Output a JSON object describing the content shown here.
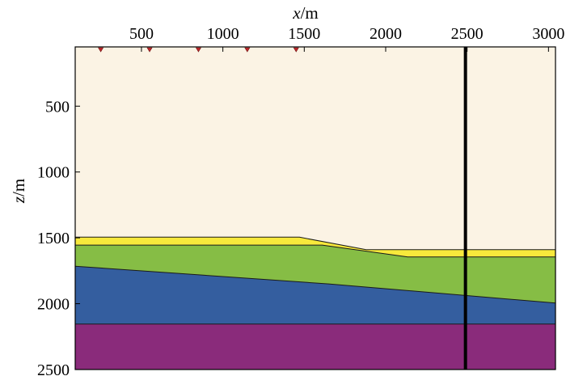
{
  "figure": {
    "x_axis": {
      "label_var": "x",
      "label_unit": "/m",
      "range": [
        93,
        3043
      ],
      "ticks": [
        500,
        1000,
        1500,
        2000,
        2500,
        3000
      ],
      "tick_labels": [
        "500",
        "1000",
        "1500",
        "2000",
        "2500",
        "3000"
      ],
      "position": "top"
    },
    "z_axis": {
      "label_var": "z",
      "label_unit": "/m",
      "range": [
        50,
        2500
      ],
      "ticks": [
        500,
        1000,
        1500,
        2000,
        2500
      ],
      "tick_labels": [
        "500",
        "1000",
        "1500",
        "2000",
        "2500"
      ],
      "direction": "downward"
    },
    "layers": [
      {
        "id": "background",
        "color": "#fbf3e4",
        "top": [
          [
            93,
            50
          ],
          [
            3043,
            50
          ]
        ]
      },
      {
        "id": "yellow-layer",
        "color": "#f8e93c",
        "top": [
          [
            93,
            1495
          ],
          [
            1470,
            1495
          ],
          [
            1880,
            1590
          ],
          [
            3043,
            1590
          ]
        ]
      },
      {
        "id": "green-layer",
        "color": "#86bd45",
        "top": [
          [
            93,
            1555
          ],
          [
            1610,
            1555
          ],
          [
            2135,
            1645
          ],
          [
            3043,
            1645
          ]
        ]
      },
      {
        "id": "blue-layer",
        "color": "#345e9f",
        "top": [
          [
            93,
            1715
          ],
          [
            1650,
            1850
          ],
          [
            3043,
            1995
          ]
        ]
      },
      {
        "id": "purple-layer",
        "color": "#8a2b7b",
        "top": [
          [
            93,
            2155
          ],
          [
            3043,
            2155
          ]
        ]
      }
    ],
    "receivers": {
      "x": [
        250,
        550,
        850,
        1150,
        1450
      ],
      "z": 50,
      "color": "#c0282c"
    },
    "well": {
      "x": 2490,
      "z_range": [
        50,
        2500
      ],
      "color": "#000000"
    }
  }
}
